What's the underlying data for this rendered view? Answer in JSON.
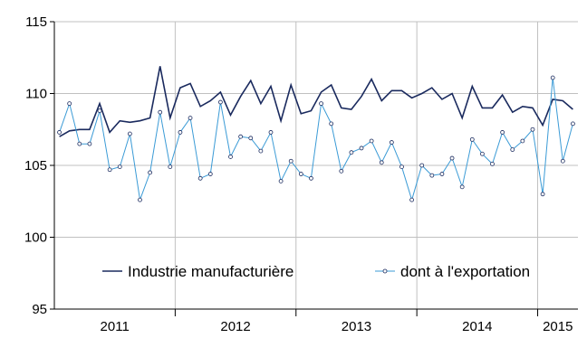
{
  "chart_data": {
    "type": "line",
    "title": "",
    "xlabel": "",
    "ylabel": "",
    "ylim": [
      95,
      115
    ],
    "yticks": [
      "95",
      "100",
      "105",
      "110",
      "115"
    ],
    "year_labels": [
      "2011",
      "2012",
      "2013",
      "2014",
      "2015"
    ],
    "x_start_month": "2011-01",
    "months_count": 52,
    "grid": true,
    "legend_position": "lower-center",
    "colors": {
      "industrie": "#1a2a5e",
      "export": "#3b9bd6",
      "grid": "#c0c0c0",
      "axis": "#000000"
    },
    "series": [
      {
        "name": "Industrie manufacturière",
        "values": [
          107.0,
          107.4,
          107.5,
          107.5,
          109.3,
          107.3,
          108.1,
          108.0,
          108.1,
          108.3,
          111.9,
          108.3,
          110.4,
          110.7,
          109.1,
          109.5,
          110.1,
          108.5,
          109.8,
          110.9,
          109.3,
          110.5,
          108.1,
          110.6,
          108.6,
          108.8,
          110.1,
          110.6,
          109.0,
          108.9,
          109.8,
          111.0,
          109.5,
          110.2,
          110.2,
          109.7,
          110.0,
          110.4,
          109.6,
          110.0,
          108.3,
          110.5,
          109.0,
          109.0,
          109.9,
          108.7,
          109.1,
          109.0,
          107.8,
          109.6,
          109.5,
          108.9
        ]
      },
      {
        "name": "dont à l'exportation",
        "values": [
          107.3,
          109.3,
          106.5,
          106.5,
          108.8,
          104.7,
          104.9,
          107.2,
          102.6,
          104.5,
          108.7,
          104.9,
          107.3,
          108.3,
          104.1,
          104.4,
          109.4,
          105.6,
          107.0,
          106.9,
          106.0,
          107.3,
          103.9,
          105.3,
          104.4,
          104.1,
          109.3,
          107.9,
          104.6,
          105.9,
          106.2,
          106.7,
          105.2,
          106.6,
          104.9,
          102.6,
          105.0,
          104.3,
          104.4,
          105.5,
          103.5,
          106.8,
          105.8,
          105.1,
          107.3,
          106.1,
          106.7,
          107.5,
          103.0,
          111.1,
          105.3,
          107.9
        ]
      }
    ]
  }
}
